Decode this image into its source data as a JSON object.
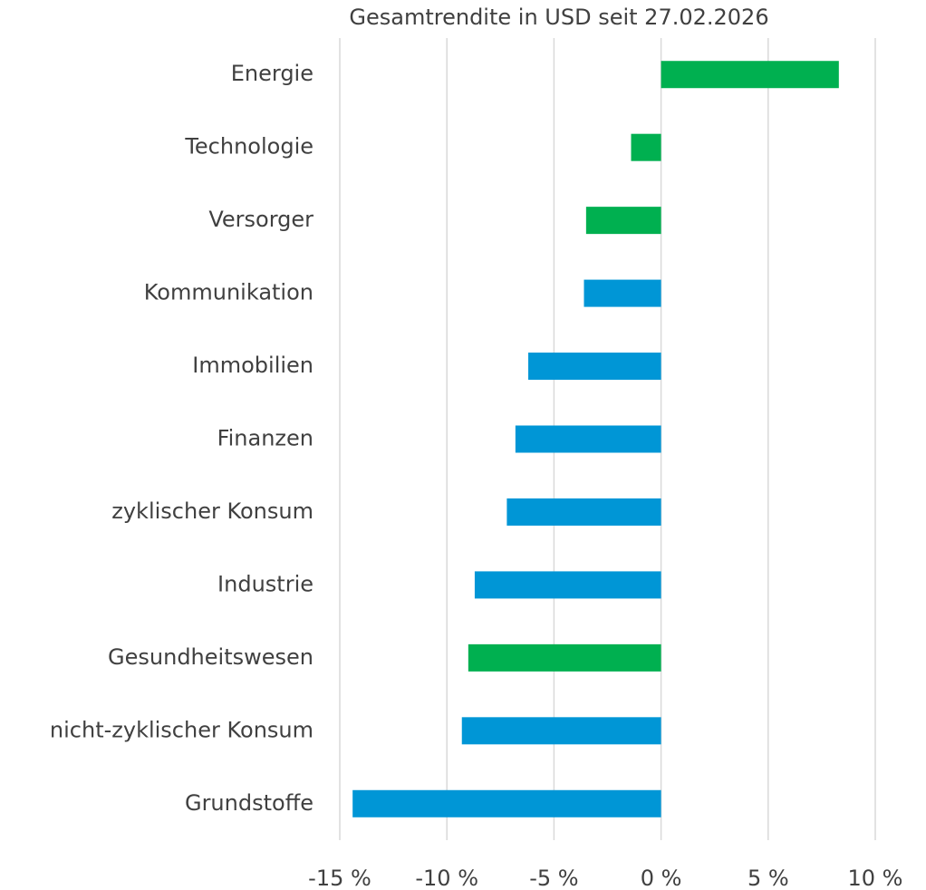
{
  "chart_data": {
    "type": "barh",
    "title": "Gesamtrendite in USD seit 27.02.2026",
    "categories": [
      "Energie",
      "Technologie",
      "Versorger",
      "Kommunikation",
      "Immobilien",
      "Finanzen",
      "zyklischer Konsum",
      "Industrie",
      "Gesundheitswesen",
      "nicht-zyklischer Konsum",
      "Grundstoffe"
    ],
    "values": [
      8.3,
      -1.4,
      -3.5,
      -3.6,
      -6.2,
      -6.8,
      -7.2,
      -8.7,
      -9.0,
      -9.3,
      -14.4
    ],
    "colors": [
      "#00b050",
      "#00b050",
      "#00b050",
      "#0096d6",
      "#0096d6",
      "#0096d6",
      "#0096d6",
      "#0096d6",
      "#00b050",
      "#0096d6",
      "#0096d6"
    ],
    "xlim": [
      -15,
      10
    ],
    "xticks": [
      {
        "value": -15,
        "label": "-15 %"
      },
      {
        "value": -10,
        "label": "-10 %"
      },
      {
        "value": -5,
        "label": "-5 %"
      },
      {
        "value": 0,
        "label": "0 %"
      },
      {
        "value": 5,
        "label": "5 %"
      },
      {
        "value": 10,
        "label": "10 %"
      }
    ],
    "grid": true
  }
}
